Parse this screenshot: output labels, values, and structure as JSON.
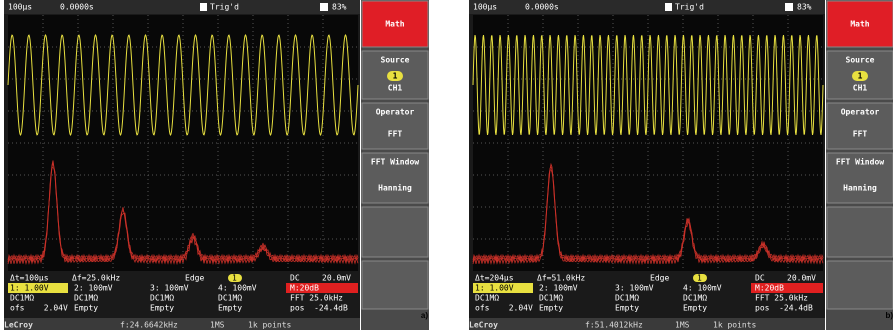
{
  "panels": [
    {
      "label": "a)",
      "top": {
        "timebase": "100μs",
        "delay": "0.0000s",
        "status": "Trig'd",
        "zoom": "83%"
      },
      "menu": {
        "title": "Math",
        "source": "Source",
        "source_channel": "1",
        "source_name": "CH1",
        "operator": "Operator",
        "operator_value": "FFT",
        "window": "FFT Window",
        "window_value": "Hanning"
      },
      "status_row": [
        "Δt=100μs",
        "Δf=25.0kHz",
        "Edge",
        "1",
        "DC",
        "20.0mV"
      ],
      "channel_rows": [
        [
          "1: 1.00V",
          "2: 100mV",
          "3: 100mV",
          "4: 100mV",
          "M:20dB"
        ],
        [
          "DC1MΩ",
          "DC1MΩ",
          "DC1MΩ",
          "DC1MΩ",
          "FFT 25.0kHz"
        ],
        [
          "ofs    2.04V",
          "Empty",
          "Empty",
          "Empty",
          "pos  -24.4dB"
        ]
      ],
      "footer": [
        "LeCroy",
        "f:24.6642kHz",
        "1MS",
        "1k points"
      ]
    },
    {
      "label": "b)",
      "top": {
        "timebase": "100μs",
        "delay": "0.0000s",
        "status": "Trig'd",
        "zoom": "83%"
      },
      "menu": {
        "title": "Math",
        "source": "Source",
        "source_channel": "1",
        "source_name": "CH1",
        "operator": "Operator",
        "operator_value": "FFT",
        "window": "FFT Window",
        "window_value": "Hanning"
      },
      "status_row": [
        "Δt=204μs",
        "Δf=51.0kHz",
        "Edge",
        "1",
        "DC",
        "20.0mV"
      ],
      "channel_rows": [
        [
          "1: 1.00V",
          "2: 100mV",
          "3: 100mV",
          "4: 100mV",
          "M:20dB"
        ],
        [
          "DC1MΩ",
          "DC1MΩ",
          "DC1MΩ",
          "DC1MΩ",
          "FFT 25.0kHz"
        ],
        [
          "ofs    2.04V",
          "Empty",
          "Empty",
          "Empty",
          "pos  -24.4dB"
        ]
      ],
      "footer": [
        "LeCroy",
        "f:51.4012kHz",
        "1MS",
        "1k points"
      ]
    }
  ]
}
